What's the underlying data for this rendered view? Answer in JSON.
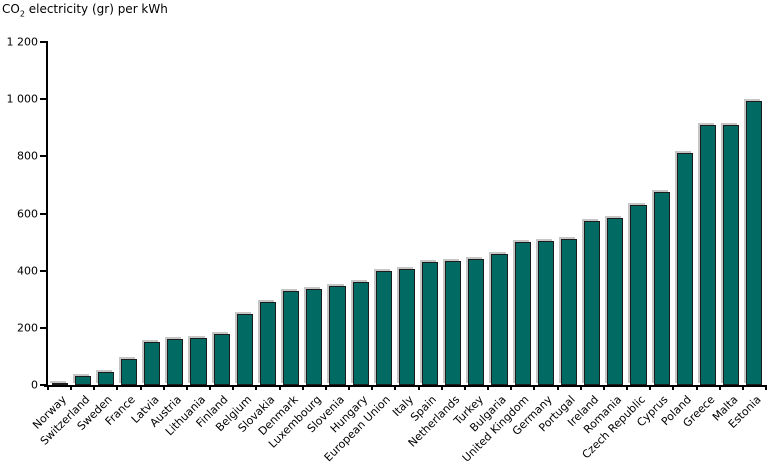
{
  "title": {
    "prefix": "CO",
    "subscript": "2",
    "suffix": " electricity (gr) per kWh"
  },
  "colors": {
    "bar_fill": "#006A63",
    "bar_border": "#1c1c1c",
    "bar_shadow": "#c6c6c6",
    "axis": "#000000",
    "background": "#ffffff"
  },
  "chart_data": {
    "type": "bar",
    "title": "CO2 electricity (gr) per kWh",
    "xlabel": "",
    "ylabel": "CO2 electricity (gr) per kWh",
    "ylim": [
      0,
      1200
    ],
    "ytick_interval": 200,
    "ytick_labels": [
      "0",
      "200",
      "400",
      "600",
      "800",
      "1 000",
      "1 200"
    ],
    "grid": false,
    "legend": "none",
    "categories": [
      "Norway",
      "Switzerland",
      "Sweden",
      "France",
      "Latvia",
      "Austria",
      "Lithuania",
      "Finland",
      "Belgium",
      "Slovakia",
      "Denmark",
      "Luxembourg",
      "Slovenia",
      "Hungary",
      "European Union",
      "Italy",
      "Spain",
      "Netherlands",
      "Turkey",
      "Bulgaria",
      "United Kingdom",
      "Germany",
      "Portugal",
      "Ireland",
      "Romania",
      "Czech Republic",
      "Cyprus",
      "Poland",
      "Greece",
      "Malta",
      "Estonia"
    ],
    "values": [
      5,
      30,
      45,
      90,
      150,
      160,
      165,
      180,
      250,
      290,
      330,
      335,
      345,
      360,
      400,
      405,
      430,
      435,
      440,
      460,
      500,
      505,
      510,
      575,
      585,
      630,
      675,
      810,
      910,
      910,
      995
    ]
  }
}
